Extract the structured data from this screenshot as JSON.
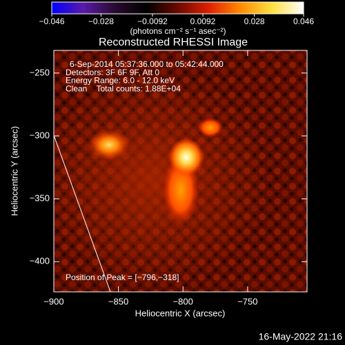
{
  "chart_data": {
    "type": "image",
    "title": "Reconstructed RHESSI Image",
    "colorbar": {
      "lim": [
        -0.046,
        0.046
      ],
      "ticks": [
        {
          "value": -0.046,
          "label": "−0.046"
        },
        {
          "value": -0.028,
          "label": "−0.028"
        },
        {
          "value": -0.0092,
          "label": "−0.0092"
        },
        0.0092,
        0.028,
        0.046
      ],
      "label": "(photons cm⁻² s⁻¹ asec⁻²)",
      "colors": [
        "#0000ff",
        "#5a1aa8",
        "#2a0a30",
        "#000000",
        "#6a0a00",
        "#e02000",
        "#ff8c00",
        "#ffe040",
        "#ffffff"
      ]
    },
    "xlabel": "Heliocentric X (arcsec)",
    "ylabel": "Heliocentric Y (arcsec)",
    "xlim": [
      -900,
      -704
    ],
    "ylim": [
      -424,
      -232
    ],
    "xticks": [
      {
        "value": -900,
        "label": "−900"
      },
      {
        "value": -850,
        "label": "−850"
      },
      {
        "value": -800,
        "label": "−800"
      },
      {
        "value": -750,
        "label": "−750"
      }
    ],
    "yticks": [
      {
        "value": -250,
        "label": "−250"
      },
      {
        "value": -300,
        "label": "−300"
      },
      {
        "value": -350,
        "label": "−350"
      },
      {
        "value": -400,
        "label": "−400"
      }
    ],
    "annotations": [
      "6-Sep-2014 05:37:36.000 to 05:42:44.000",
      "Detectors: 3F 6F 9F, Att 0",
      "Energy Range: 6.0 - 12.0 keV",
      "Clean    Total counts: 1.88E+04"
    ],
    "peak_label": "Position of Peak = [−796,−318]",
    "timestamp": "16-May-2022 21:16"
  }
}
